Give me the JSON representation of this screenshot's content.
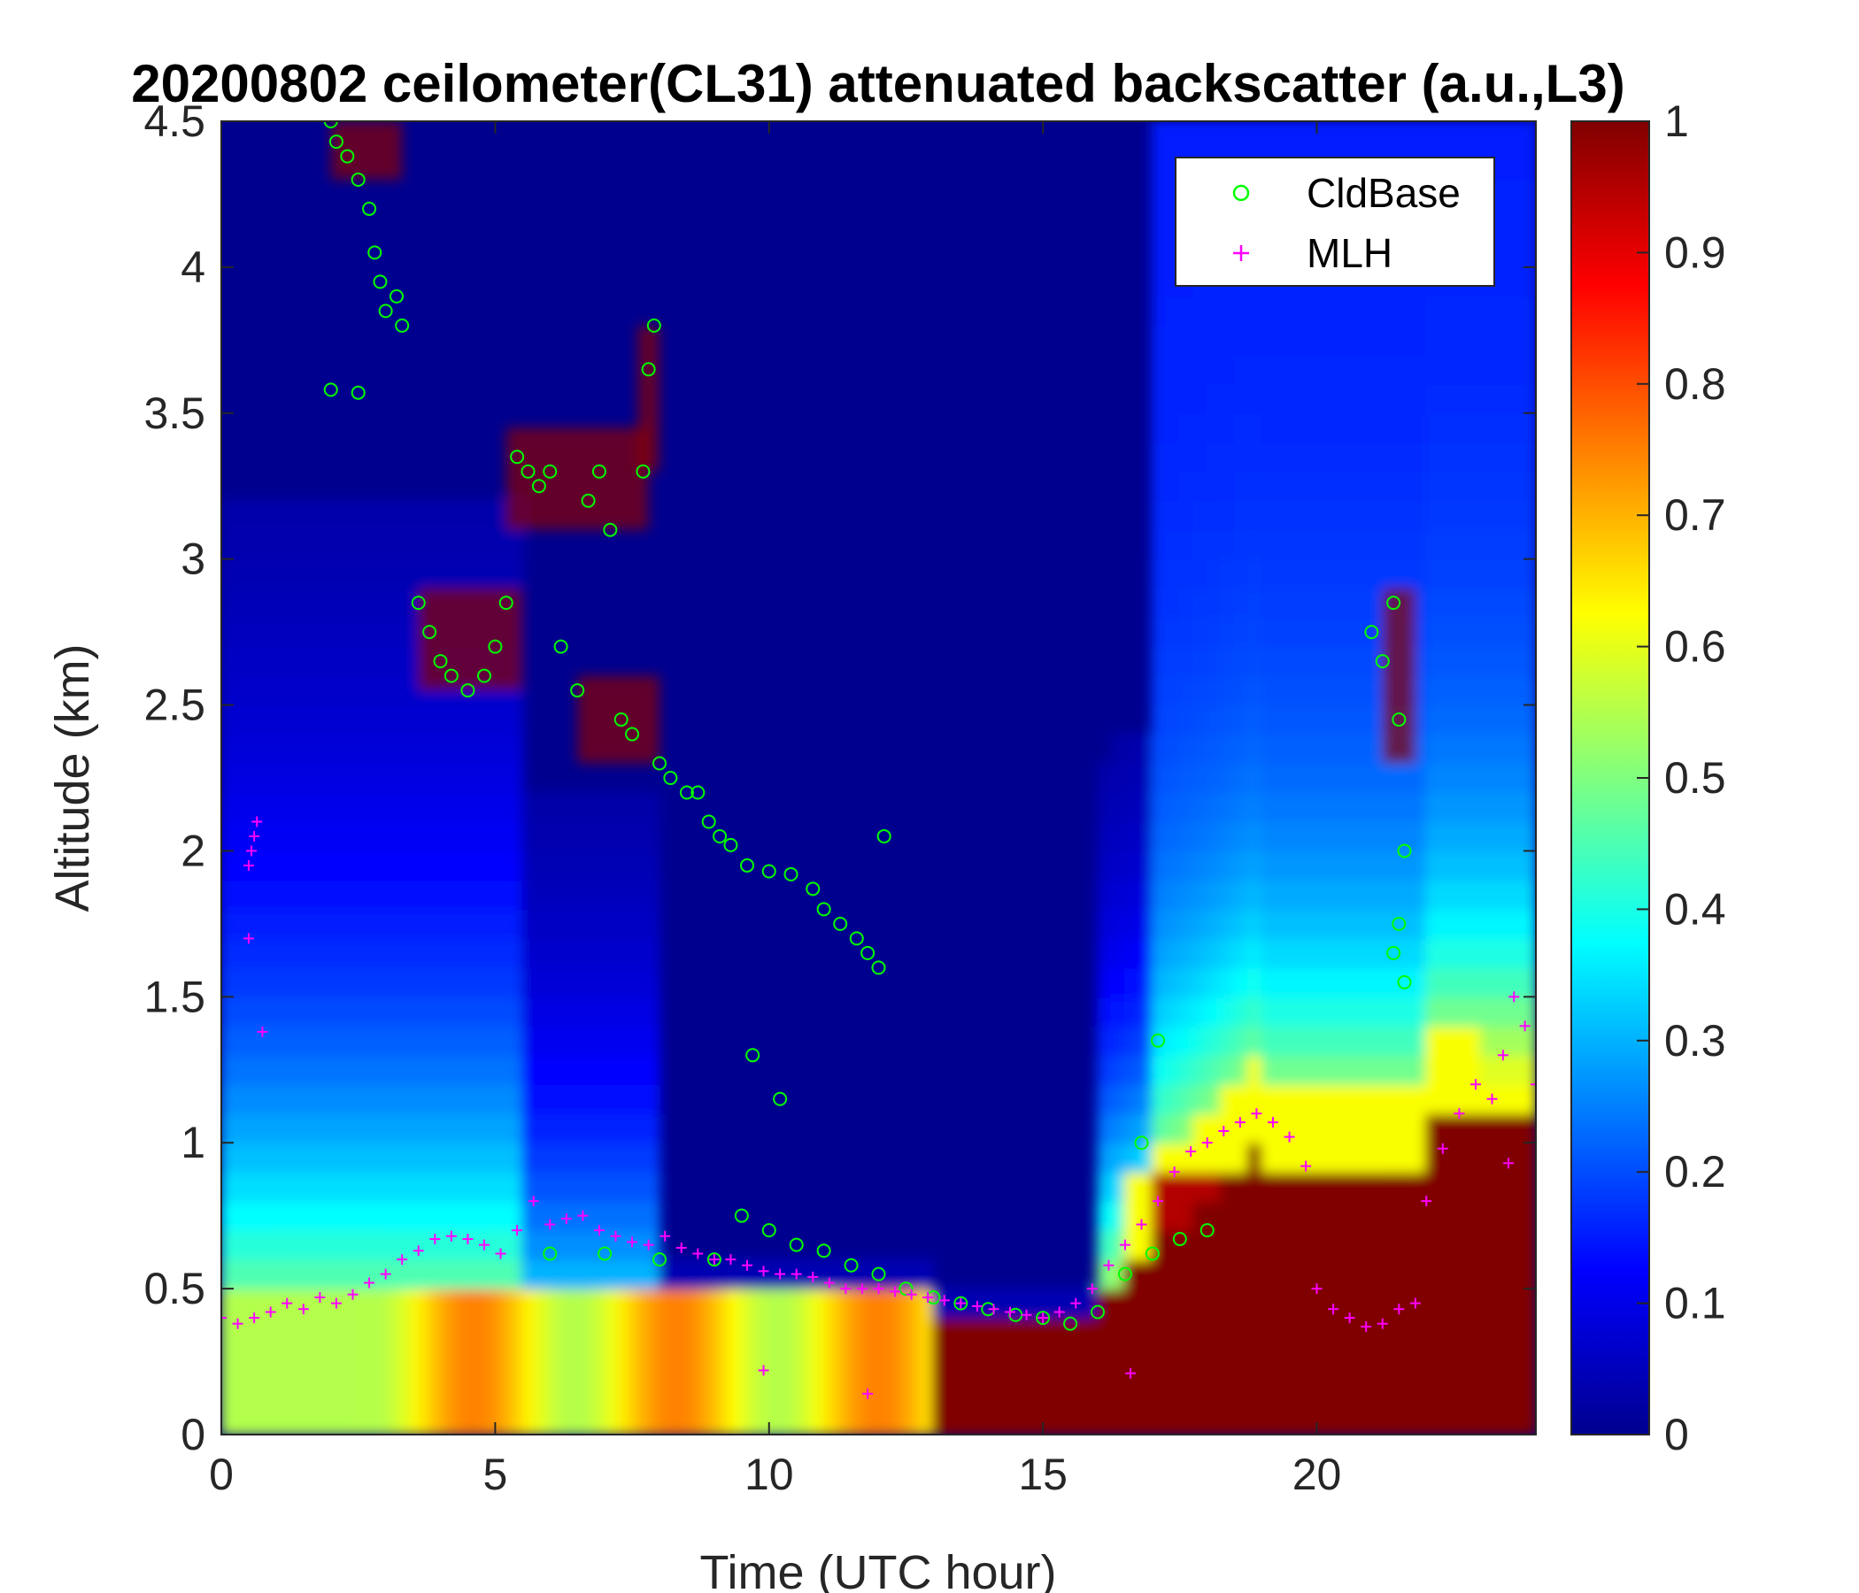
{
  "chart_data": {
    "type": "heatmap",
    "title": "20200802 ceilometer(CL31) attenuated backscatter (a.u.,L3)",
    "xlabel": "Time (UTC hour)",
    "ylabel": "Altitude (km)",
    "xlim": [
      0,
      24
    ],
    "ylim": [
      0,
      4.5
    ],
    "x_ticks": [
      "0",
      "5",
      "10",
      "15",
      "20"
    ],
    "y_ticks": [
      "0",
      "0.5",
      "1",
      "1.5",
      "2",
      "2.5",
      "3",
      "3.5",
      "4",
      "4.5"
    ],
    "colorbar": {
      "colormap": "jet",
      "range": [
        0,
        1
      ],
      "ticks": [
        "0",
        "0.1",
        "0.2",
        "0.3",
        "0.4",
        "0.5",
        "0.6",
        "0.7",
        "0.8",
        "0.9",
        "1"
      ]
    },
    "legend": {
      "position": "top-right",
      "entries": [
        "CldBase",
        "MLH"
      ]
    },
    "colors": {
      "CldBase": "#00ff00",
      "MLH": "#ff00ff",
      "background": "#00008f"
    },
    "series": [
      {
        "name": "CldBase",
        "marker": "o",
        "x": [
          2.0,
          2.1,
          2.3,
          2.5,
          2.7,
          2.8,
          2.9,
          3.0,
          3.2,
          3.3,
          2.0,
          2.5,
          3.6,
          3.8,
          4.0,
          4.2,
          4.5,
          4.8,
          5.0,
          5.2,
          5.4,
          5.6,
          5.8,
          6.0,
          6.2,
          6.5,
          6.7,
          6.9,
          7.1,
          7.3,
          7.5,
          7.7,
          7.8,
          7.9,
          8.0,
          8.2,
          8.5,
          8.7,
          8.9,
          9.1,
          9.3,
          9.6,
          10.0,
          10.4,
          10.8,
          11.0,
          11.3,
          11.6,
          11.8,
          12.0,
          12.1,
          21.0,
          21.2,
          21.4,
          21.5,
          21.6,
          21.5,
          21.4,
          21.6,
          6.0,
          7.0,
          8.0,
          9.0,
          9.5,
          10.0,
          10.5,
          11.0,
          11.5,
          12.0,
          12.5,
          13.0,
          13.5,
          14.0,
          14.5,
          15.0,
          15.5,
          16.0,
          16.5,
          17.0,
          17.5,
          18.0,
          9.7,
          10.2,
          17.1,
          16.8
        ],
        "y": [
          4.5,
          4.43,
          4.38,
          4.3,
          4.2,
          4.05,
          3.95,
          3.85,
          3.9,
          3.8,
          3.58,
          3.57,
          2.85,
          2.75,
          2.65,
          2.6,
          2.55,
          2.6,
          2.7,
          2.85,
          3.35,
          3.3,
          3.25,
          3.3,
          2.7,
          2.55,
          3.2,
          3.3,
          3.1,
          2.45,
          2.4,
          3.3,
          3.65,
          3.8,
          2.3,
          2.25,
          2.2,
          2.2,
          2.1,
          2.05,
          2.02,
          1.95,
          1.93,
          1.92,
          1.87,
          1.8,
          1.75,
          1.7,
          1.65,
          1.6,
          2.05,
          2.75,
          2.65,
          2.85,
          2.45,
          2.0,
          1.75,
          1.65,
          1.55,
          0.62,
          0.62,
          0.6,
          0.6,
          0.75,
          0.7,
          0.65,
          0.63,
          0.58,
          0.55,
          0.5,
          0.47,
          0.45,
          0.43,
          0.41,
          0.4,
          0.38,
          0.42,
          0.55,
          0.62,
          0.67,
          0.7,
          1.3,
          1.15,
          1.35,
          1.0
        ]
      },
      {
        "name": "MLH",
        "marker": "+",
        "x": [
          0.0,
          0.3,
          0.6,
          0.9,
          1.2,
          1.5,
          1.8,
          2.1,
          2.4,
          2.7,
          3.0,
          3.3,
          3.6,
          3.9,
          4.2,
          4.5,
          4.8,
          5.1,
          5.4,
          5.7,
          6.0,
          6.3,
          6.6,
          6.9,
          7.2,
          7.5,
          7.8,
          8.1,
          8.4,
          8.7,
          9.0,
          9.3,
          9.6,
          9.9,
          10.2,
          10.5,
          10.8,
          11.1,
          11.4,
          11.7,
          12.0,
          12.3,
          12.6,
          12.9,
          13.2,
          13.5,
          13.8,
          14.1,
          14.4,
          14.7,
          15.0,
          15.3,
          15.6,
          15.9,
          16.2,
          16.5,
          16.8,
          17.1,
          17.4,
          17.7,
          18.0,
          18.3,
          18.6,
          18.9,
          19.2,
          19.5,
          19.8,
          20.0,
          20.3,
          20.6,
          20.9,
          21.2,
          21.5,
          21.8,
          22.0,
          22.3,
          22.6,
          22.9,
          23.2,
          23.4,
          23.6,
          23.8,
          24.0,
          0.5,
          0.55,
          0.6,
          0.65,
          0.5,
          0.75,
          9.9,
          11.8,
          16.6,
          23.5
        ],
        "y": [
          0.4,
          0.38,
          0.4,
          0.42,
          0.45,
          0.43,
          0.47,
          0.45,
          0.48,
          0.52,
          0.55,
          0.6,
          0.63,
          0.67,
          0.68,
          0.67,
          0.65,
          0.62,
          0.7,
          0.8,
          0.72,
          0.74,
          0.75,
          0.7,
          0.68,
          0.66,
          0.65,
          0.68,
          0.64,
          0.62,
          0.6,
          0.6,
          0.58,
          0.56,
          0.55,
          0.55,
          0.54,
          0.52,
          0.5,
          0.5,
          0.5,
          0.49,
          0.48,
          0.47,
          0.46,
          0.45,
          0.44,
          0.43,
          0.42,
          0.41,
          0.4,
          0.42,
          0.45,
          0.5,
          0.58,
          0.65,
          0.72,
          0.8,
          0.9,
          0.97,
          1.0,
          1.04,
          1.07,
          1.1,
          1.07,
          1.02,
          0.92,
          0.5,
          0.43,
          0.4,
          0.37,
          0.38,
          0.43,
          0.45,
          0.8,
          0.98,
          1.1,
          1.2,
          1.15,
          1.3,
          1.5,
          1.4,
          1.2,
          1.95,
          2.0,
          2.05,
          2.1,
          1.7,
          1.38,
          0.22,
          0.14,
          0.21,
          0.93
        ]
      }
    ]
  }
}
